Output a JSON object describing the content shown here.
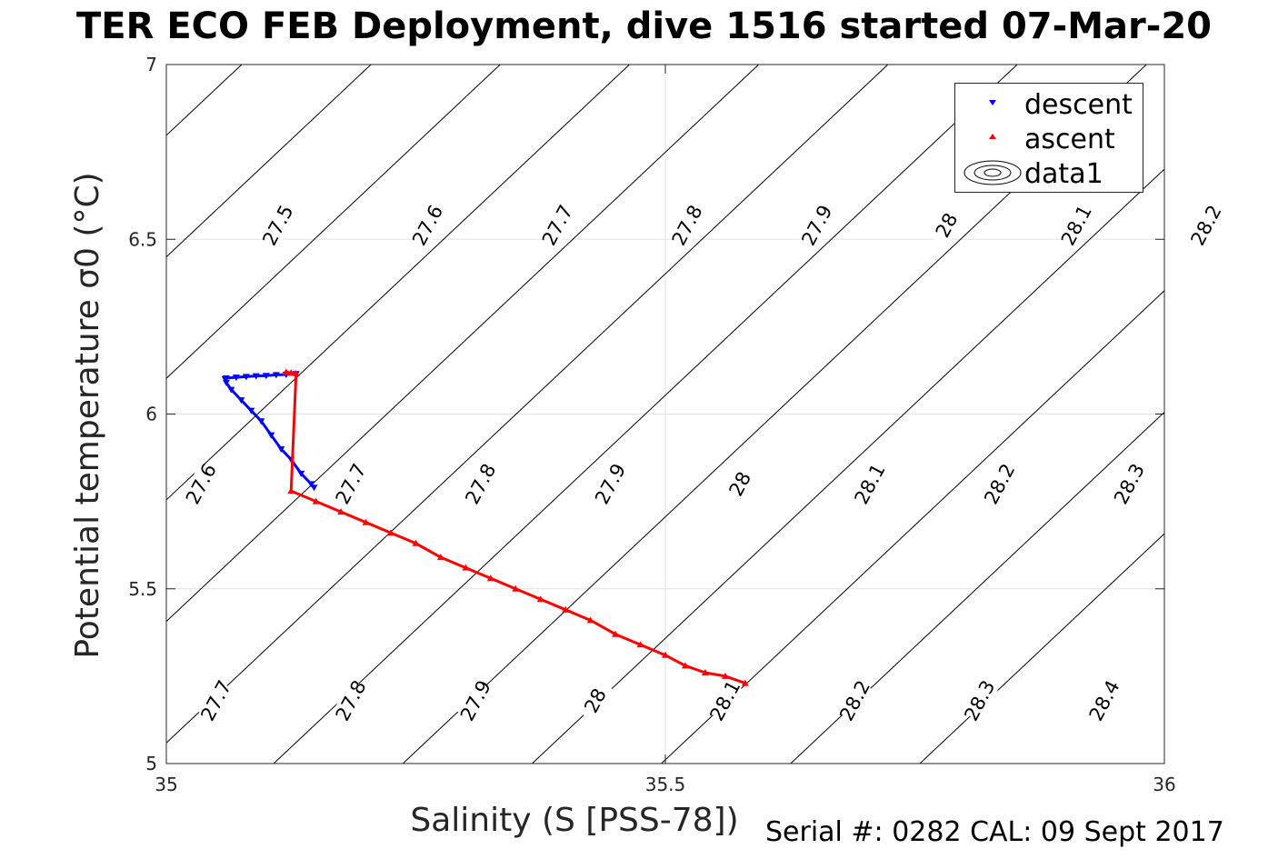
{
  "chart_data": {
    "type": "scatter",
    "title": "TER ECO FEB Deployment, dive 1516 started 07-Mar-20",
    "xlabel": "Salinity (S [PSS-78])",
    "ylabel": "Potential temperature σ0 (°C)",
    "xlim": [
      35,
      36
    ],
    "ylim": [
      5,
      7
    ],
    "xticks": [
      "35",
      "35.5",
      "36"
    ],
    "yticks": [
      "5",
      "5.5",
      "6",
      "6.5",
      "7"
    ],
    "grid": true,
    "legend_position": "top-right",
    "legend": [
      "descent",
      "ascent",
      "data1"
    ],
    "series": [
      {
        "name": "descent",
        "color": "#0000ff",
        "marker": "triangle-down",
        "points": [
          [
            35.13,
            6.115
          ],
          [
            35.12,
            6.113
          ],
          [
            35.11,
            6.112
          ],
          [
            35.1,
            6.11
          ],
          [
            35.09,
            6.109
          ],
          [
            35.08,
            6.107
          ],
          [
            35.07,
            6.105
          ],
          [
            35.06,
            6.103
          ],
          [
            35.059,
            6.1
          ],
          [
            35.06,
            6.09
          ],
          [
            35.065,
            6.07
          ],
          [
            35.075,
            6.04
          ],
          [
            35.085,
            6.01
          ],
          [
            35.095,
            5.98
          ],
          [
            35.105,
            5.94
          ],
          [
            35.115,
            5.9
          ],
          [
            35.125,
            5.87
          ],
          [
            35.135,
            5.83
          ],
          [
            35.145,
            5.8
          ],
          [
            35.148,
            5.79
          ]
        ]
      },
      {
        "name": "ascent",
        "color": "#ff0000",
        "marker": "triangle-up",
        "points": [
          [
            35.12,
            6.12
          ],
          [
            35.125,
            6.118
          ],
          [
            35.13,
            6.116
          ],
          [
            35.125,
            5.78
          ],
          [
            35.15,
            5.75
          ],
          [
            35.175,
            5.72
          ],
          [
            35.2,
            5.69
          ],
          [
            35.225,
            5.66
          ],
          [
            35.25,
            5.63
          ],
          [
            35.275,
            5.59
          ],
          [
            35.3,
            5.56
          ],
          [
            35.325,
            5.53
          ],
          [
            35.35,
            5.5
          ],
          [
            35.375,
            5.47
          ],
          [
            35.4,
            5.44
          ],
          [
            35.425,
            5.41
          ],
          [
            35.45,
            5.37
          ],
          [
            35.475,
            5.34
          ],
          [
            35.5,
            5.31
          ],
          [
            35.52,
            5.28
          ],
          [
            35.54,
            5.26
          ],
          [
            35.56,
            5.25
          ],
          [
            35.58,
            5.23
          ]
        ]
      }
    ],
    "density_contours": [
      {
        "label": "27.5",
        "x_at_temp7": 35.205,
        "label_x": 35.112,
        "label_y": 6.54
      },
      {
        "label": "27.6",
        "x_at_temp7": 35.345,
        "label_x": 35.262,
        "label_y": 6.54
      },
      {
        "label": "27.7",
        "x_at_temp7": 35.475,
        "label_x": 35.392,
        "label_y": 6.54
      },
      {
        "label": "27.8",
        "x_at_temp7": 35.605,
        "label_x": 35.522,
        "label_y": 6.54
      },
      {
        "label": "27.9",
        "x_at_temp7": 35.735,
        "label_x": 35.652,
        "label_y": 6.54
      },
      {
        "label": "28",
        "x_at_temp7": 35.865,
        "label_x": 35.782,
        "label_y": 6.54
      },
      {
        "label": "28.1",
        "x_at_temp7": 35.995,
        "label_x": 35.912,
        "label_y": 6.54
      },
      {
        "label": "28.2",
        "x_at_temp7": 36.125,
        "label_x": 36.042,
        "label_y": 6.54
      }
    ],
    "density_contours_lower": [
      {
        "label": "27.6",
        "label_x": 35.035,
        "label_y": 5.8
      },
      {
        "label": "27.7",
        "label_x": 35.185,
        "label_y": 5.8
      },
      {
        "label": "27.8",
        "label_x": 35.315,
        "label_y": 5.8
      },
      {
        "label": "27.9",
        "label_x": 35.445,
        "label_y": 5.8
      },
      {
        "label": "28",
        "label_x": 35.575,
        "label_y": 5.8
      },
      {
        "label": "28.1",
        "label_x": 35.705,
        "label_y": 5.8
      },
      {
        "label": "28.2",
        "label_x": 35.835,
        "label_y": 5.8
      },
      {
        "label": "28.3",
        "label_x": 35.965,
        "label_y": 5.8
      }
    ],
    "density_contours_bottom": [
      {
        "label": "27.7",
        "label_x": 35.05,
        "label_y": 5.18
      },
      {
        "label": "27.8",
        "label_x": 35.185,
        "label_y": 5.18
      },
      {
        "label": "27.9",
        "label_x": 35.31,
        "label_y": 5.18
      },
      {
        "label": "28",
        "label_x": 35.43,
        "label_y": 5.18
      },
      {
        "label": "28.1",
        "label_x": 35.56,
        "label_y": 5.18
      },
      {
        "label": "28.2",
        "label_x": 35.69,
        "label_y": 5.18
      },
      {
        "label": "28.3",
        "label_x": 35.815,
        "label_y": 5.18
      },
      {
        "label": "28.4",
        "label_x": 35.94,
        "label_y": 5.18
      }
    ]
  },
  "footer": {
    "serial": "Serial #: 0282  CAL: 09 Sept 2017"
  },
  "legend_text": {
    "descent": "descent",
    "ascent": "ascent",
    "data1": "data1"
  }
}
